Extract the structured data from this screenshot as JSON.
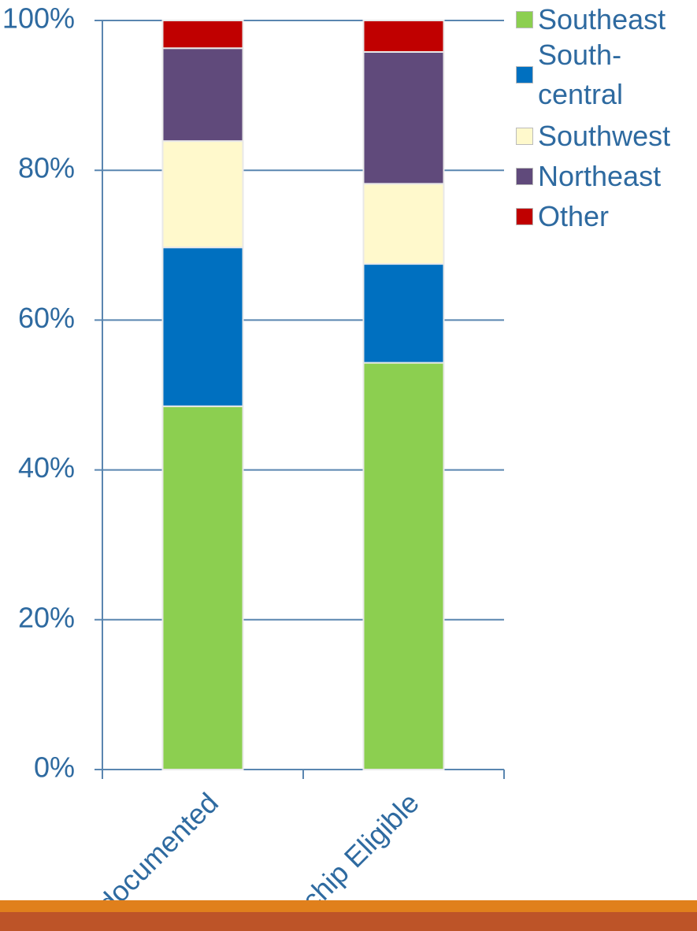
{
  "chart_data": {
    "type": "stacked_bar",
    "categories": [
      "documented",
      "chip Eligible"
    ],
    "series": [
      {
        "name": "Southeast",
        "color": "#8ccf50",
        "values": [
          48.5,
          54.3
        ]
      },
      {
        "name": "South-central",
        "color": "#0070c0",
        "values": [
          21.2,
          13.2
        ]
      },
      {
        "name": "Southwest",
        "color": "#fff9cc",
        "values": [
          14.2,
          10.7
        ]
      },
      {
        "name": "Northeast",
        "color": "#604a7b",
        "values": [
          12.4,
          17.6
        ]
      },
      {
        "name": "Other",
        "color": "#c00000",
        "values": [
          3.7,
          4.2
        ]
      }
    ],
    "ylim": [
      0,
      100
    ],
    "yticks": [
      {
        "value": 0,
        "label": "0%"
      },
      {
        "value": 20,
        "label": "20%"
      },
      {
        "value": 40,
        "label": "40%"
      },
      {
        "value": 60,
        "label": "60%"
      },
      {
        "value": 80,
        "label": "80%"
      },
      {
        "value": 100,
        "label": "100%"
      }
    ],
    "grid": true,
    "legend": "top-right"
  }
}
